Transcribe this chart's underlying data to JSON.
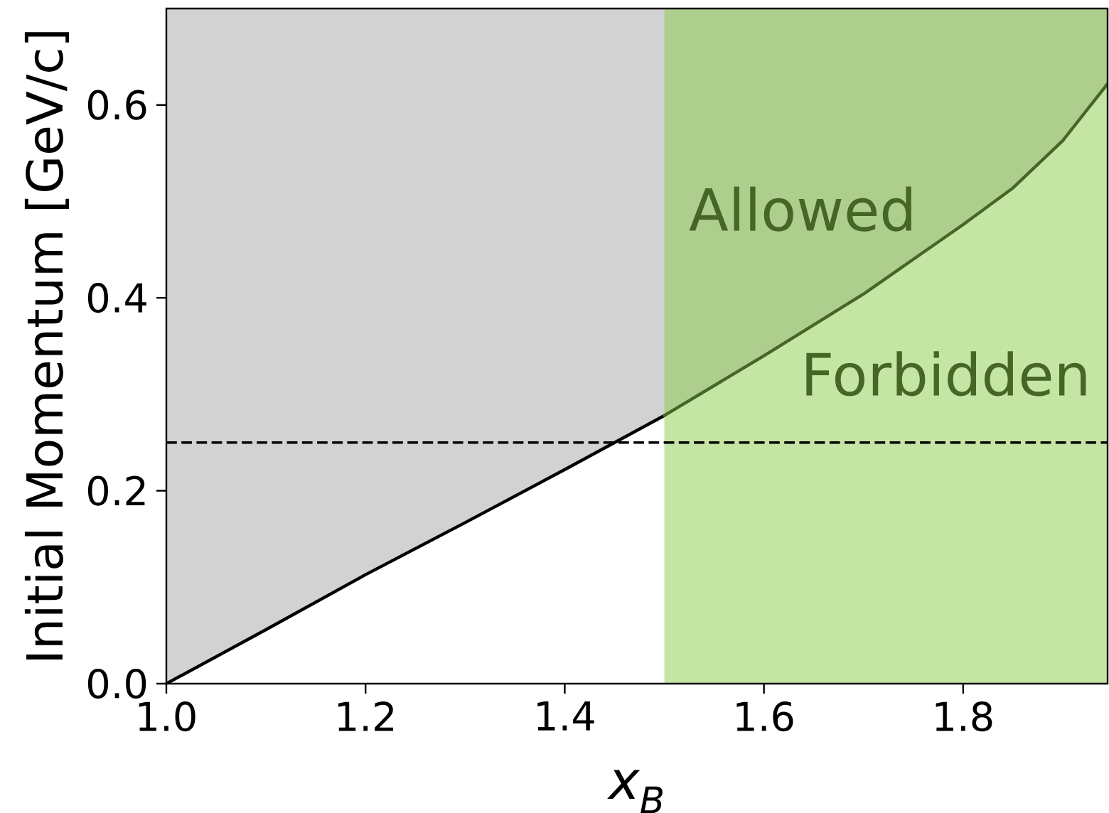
{
  "chart_data": {
    "type": "line",
    "xlabel": "x$_{B}$",
    "ylabel": "Initial Momentum [GeV/c]",
    "xlim": [
      1.0,
      1.945
    ],
    "ylim": [
      0.0,
      0.7
    ],
    "xticks": [
      {
        "value": 1.0,
        "label": "1.0"
      },
      1.2,
      1.4,
      1.6,
      1.8
    ],
    "yticks": [
      {
        "value": 0.0,
        "label": "0.0"
      },
      0.2,
      0.4,
      0.6
    ],
    "series": [
      {
        "color": "#000000",
        "x": [
          1.0,
          1.1,
          1.2,
          1.3,
          1.4,
          1.5
        ],
        "values": [
          0.0,
          0.056,
          0.113,
          0.167,
          0.222,
          0.278
        ],
        "lower": [
          0.0,
          0.056,
          0.113,
          0.167,
          0.222,
          0.278
        ],
        "upper": [
          0.7,
          0.7,
          0.7,
          0.7,
          0.7,
          0.7
        ]
      },
      {
        "color": "#466626",
        "x": [
          1.5,
          1.6,
          1.7,
          1.8,
          1.85,
          1.9,
          1.945
        ],
        "values": [
          0.278,
          0.34,
          0.404,
          0.476,
          0.514,
          0.563,
          0.622
        ],
        "lower": [
          0.278,
          0.34,
          0.404,
          0.476,
          0.514,
          0.563,
          0.622
        ],
        "upper": [
          0.7,
          0.7,
          0.7,
          0.7,
          0.7,
          0.7,
          0.7
        ]
      }
    ],
    "ref_lines": [
      {
        "axis": "y",
        "value": 0.25,
        "color": "#000000",
        "line_style": "dashed"
      }
    ],
    "bands": [
      {
        "axis": "x",
        "from": 1.5,
        "to": 1.945,
        "color": "#c5e5a5"
      }
    ],
    "annotations": [
      "Allowed",
      "Forbidden"
    ]
  }
}
